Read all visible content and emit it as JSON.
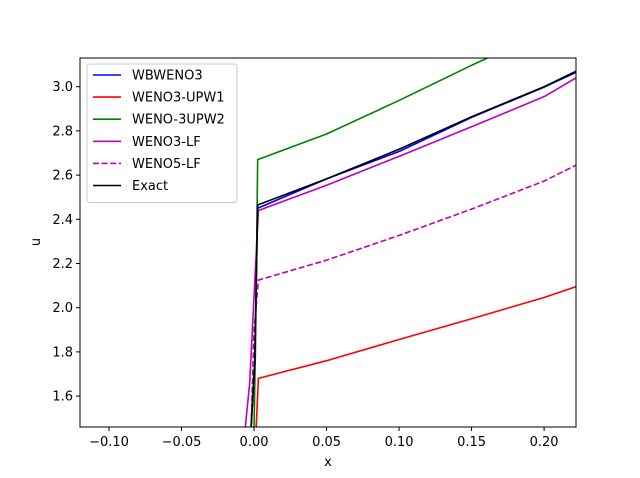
{
  "chart_data": {
    "type": "line",
    "xlabel": "x",
    "ylabel": "u",
    "xlim": [
      -0.12,
      0.222
    ],
    "ylim": [
      1.46,
      3.13
    ],
    "xticks": [
      "−0.10",
      "−0.05",
      "0.00",
      "0.05",
      "0.10",
      "0.15",
      "0.20"
    ],
    "xtick_values": [
      -0.1,
      -0.05,
      0.0,
      0.05,
      0.1,
      0.15,
      0.2
    ],
    "yticks": [
      "1.6",
      "1.8",
      "2.0",
      "2.2",
      "2.4",
      "2.6",
      "2.8",
      "3.0"
    ],
    "ytick_values": [
      1.6,
      1.8,
      2.0,
      2.2,
      2.4,
      2.6,
      2.8,
      3.0
    ],
    "grid": false,
    "legend_position": "top-left",
    "series": [
      {
        "name": "WBWENO3",
        "color": "#0000ff",
        "dash": "solid",
        "points": [
          [
            -0.002,
            1.46
          ],
          [
            0.0005,
            1.75
          ],
          [
            0.0025,
            2.45
          ],
          [
            0.05,
            2.583
          ],
          [
            0.1,
            2.707
          ],
          [
            0.15,
            2.861
          ],
          [
            0.2,
            2.998
          ],
          [
            0.222,
            3.065
          ]
        ]
      },
      {
        "name": "WENO3-UPW1",
        "color": "#ff0000",
        "dash": "solid",
        "points": [
          [
            0.0015,
            1.46
          ],
          [
            0.003,
            1.68
          ],
          [
            0.05,
            1.76
          ],
          [
            0.1,
            1.856
          ],
          [
            0.15,
            1.95
          ],
          [
            0.2,
            2.046
          ],
          [
            0.222,
            2.095
          ]
        ]
      },
      {
        "name": "WENO-3UPW2",
        "color": "#008000",
        "dash": "solid",
        "points": [
          [
            0.0,
            1.46
          ],
          [
            0.001,
            1.82
          ],
          [
            0.0025,
            2.67
          ],
          [
            0.05,
            2.786
          ],
          [
            0.1,
            2.938
          ],
          [
            0.15,
            3.097
          ],
          [
            0.161,
            3.13
          ]
        ]
      },
      {
        "name": "WENO3-LF",
        "color": "#bf00bf",
        "dash": "solid",
        "points": [
          [
            -0.006,
            1.46
          ],
          [
            -0.003,
            1.66
          ],
          [
            0.003,
            2.44
          ],
          [
            0.05,
            2.554
          ],
          [
            0.1,
            2.685
          ],
          [
            0.15,
            2.819
          ],
          [
            0.2,
            2.955
          ],
          [
            0.222,
            3.04
          ]
        ]
      },
      {
        "name": "WENO5-LF",
        "color": "#bf00bf",
        "dash": "dashed",
        "points": [
          [
            -0.002,
            1.46
          ],
          [
            0.0,
            1.9
          ],
          [
            0.003,
            2.125
          ],
          [
            0.05,
            2.215
          ],
          [
            0.1,
            2.327
          ],
          [
            0.15,
            2.446
          ],
          [
            0.2,
            2.573
          ],
          [
            0.222,
            2.645
          ]
        ]
      },
      {
        "name": "Exact",
        "color": "#000000",
        "dash": "solid",
        "points": [
          [
            -0.002,
            1.46
          ],
          [
            0.0005,
            1.75
          ],
          [
            0.0025,
            2.465
          ],
          [
            0.05,
            2.583
          ],
          [
            0.1,
            2.717
          ],
          [
            0.15,
            2.864
          ],
          [
            0.2,
            3.0
          ],
          [
            0.222,
            3.07
          ]
        ]
      }
    ]
  }
}
